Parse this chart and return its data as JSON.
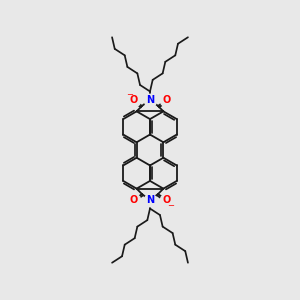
{
  "bg_color": "#e8e8e8",
  "bond_color": "#1a1a1a",
  "N_color": "#0000ff",
  "O_color": "#ff0000",
  "bond_width": 1.3,
  "figsize": [
    3.0,
    3.0
  ],
  "dpi": 100,
  "xlim": [
    0,
    10
  ],
  "ylim": [
    0,
    10
  ]
}
